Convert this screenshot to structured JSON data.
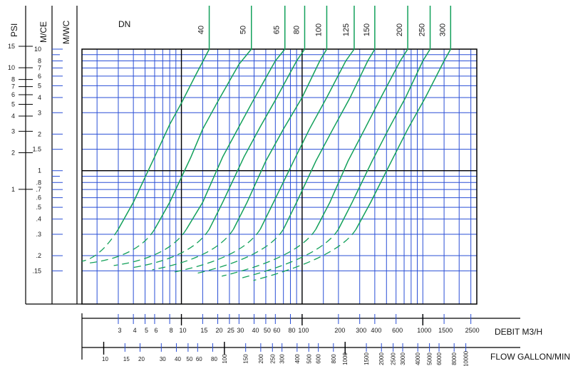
{
  "chart_data": {
    "type": "line",
    "title": "",
    "colors": {
      "grid": "#2a4fd6",
      "curve": "#12a05a",
      "frame": "#000000",
      "text": "#1a1a1a"
    },
    "grid": true,
    "x_scale": "log",
    "y_scale": "log",
    "xlabel": "DEBIT M3/H",
    "xlabel2": "FLOW GALLON/MIN",
    "xlim": [
      1.5,
      2800
    ],
    "ylim": [
      0.08,
      10
    ],
    "x_ticks_m3h": [
      3,
      4,
      5,
      6,
      8,
      10,
      15,
      20,
      25,
      30,
      40,
      50,
      60,
      80,
      100,
      200,
      300,
      400,
      600,
      1000,
      1500,
      2500
    ],
    "x_ticks_gpm": [
      10,
      15,
      20,
      30,
      40,
      50,
      60,
      80,
      100,
      150,
      200,
      250,
      300,
      400,
      500,
      600,
      800,
      1000,
      1500,
      2000,
      2500,
      3000,
      4000,
      5000,
      6000,
      8000,
      10000
    ],
    "y_header_mce": "M/CE",
    "y_header_mwc": "M/WC",
    "y_header_psi": "PSI",
    "y_ticks_mce": [
      "10",
      "8",
      "7",
      "6",
      "5",
      "4",
      "3",
      "2",
      "1.5",
      "1",
      ".8",
      ".7",
      ".6",
      ".5",
      ".4",
      ".3",
      ".2",
      ".15"
    ],
    "y_ticks_psi": [
      "15",
      "10",
      "8",
      "7",
      "6",
      "5",
      "4",
      "3",
      "2",
      "1"
    ],
    "dn_label": "DN",
    "series": [
      {
        "name": "40",
        "points": [
          [
            3,
            0.33
          ],
          [
            4,
            0.55
          ],
          [
            6,
            1.3
          ],
          [
            8,
            2.4
          ],
          [
            10,
            3.6
          ],
          [
            13,
            6
          ],
          [
            17,
            10
          ]
        ]
      },
      {
        "name": "50",
        "points": [
          [
            6,
            0.33
          ],
          [
            8,
            0.55
          ],
          [
            12,
            1.3
          ],
          [
            15,
            2.2
          ],
          [
            20,
            3.7
          ],
          [
            30,
            7.5
          ],
          [
            38,
            10
          ]
        ]
      },
      {
        "name": "65",
        "points": [
          [
            11,
            0.33
          ],
          [
            15,
            0.55
          ],
          [
            22,
            1.3
          ],
          [
            30,
            2.3
          ],
          [
            40,
            3.9
          ],
          [
            60,
            8
          ],
          [
            72,
            10
          ]
        ]
      },
      {
        "name": "80",
        "points": [
          [
            17,
            0.33
          ],
          [
            22,
            0.55
          ],
          [
            33,
            1.3
          ],
          [
            45,
            2.3
          ],
          [
            60,
            3.8
          ],
          [
            90,
            8
          ],
          [
            105,
            10
          ]
        ]
      },
      {
        "name": "100",
        "points": [
          [
            27,
            0.33
          ],
          [
            35,
            0.55
          ],
          [
            50,
            1.2
          ],
          [
            70,
            2.2
          ],
          [
            100,
            4
          ],
          [
            140,
            8
          ],
          [
            160,
            10
          ]
        ]
      },
      {
        "name": "125",
        "points": [
          [
            45,
            0.33
          ],
          [
            58,
            0.55
          ],
          [
            85,
            1.2
          ],
          [
            115,
            2.2
          ],
          [
            160,
            4
          ],
          [
            230,
            8
          ],
          [
            270,
            10
          ]
        ]
      },
      {
        "name": "150",
        "points": [
          [
            70,
            0.33
          ],
          [
            90,
            0.55
          ],
          [
            130,
            1.2
          ],
          [
            180,
            2.2
          ],
          [
            250,
            4
          ],
          [
            350,
            8
          ],
          [
            400,
            10
          ]
        ]
      },
      {
        "name": "200",
        "points": [
          [
            130,
            0.33
          ],
          [
            170,
            0.55
          ],
          [
            240,
            1.2
          ],
          [
            330,
            2.2
          ],
          [
            450,
            4
          ],
          [
            650,
            8
          ],
          [
            750,
            10
          ]
        ]
      },
      {
        "name": "250",
        "points": [
          [
            200,
            0.33
          ],
          [
            260,
            0.55
          ],
          [
            380,
            1.2
          ],
          [
            520,
            2.2
          ],
          [
            720,
            4
          ],
          [
            1000,
            8
          ],
          [
            1150,
            10
          ]
        ]
      },
      {
        "name": "300",
        "points": [
          [
            280,
            0.33
          ],
          [
            370,
            0.55
          ],
          [
            550,
            1.2
          ],
          [
            750,
            2.2
          ],
          [
            1050,
            4
          ],
          [
            1500,
            8
          ],
          [
            1700,
            10
          ]
        ]
      }
    ]
  }
}
